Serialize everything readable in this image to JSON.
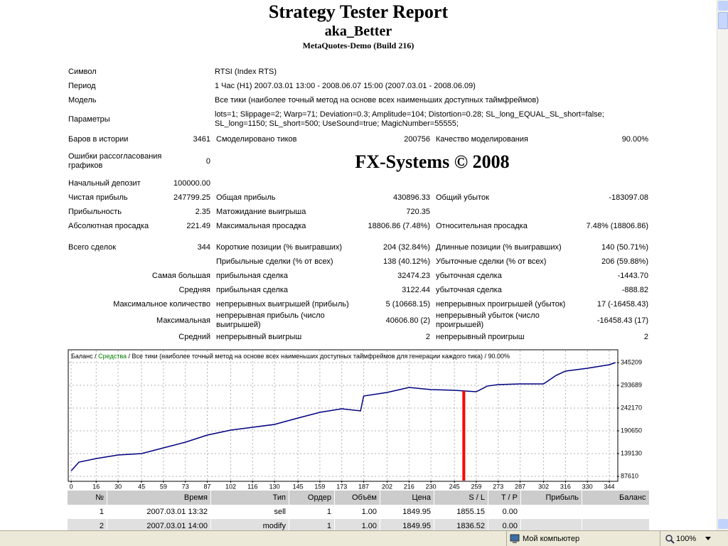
{
  "header": {
    "title": "Strategy Tester Report",
    "expert": "aka_Better",
    "server": "MetaQuotes-Demo (Build 216)"
  },
  "report": {
    "info": [
      [
        "Символ",
        "RTSI (Index RTS)"
      ],
      [
        "Период",
        "1 Час (H1) 2007.03.01 13:00 - 2008.06.07 15:00 (2007.03.01 - 2008.06.09)"
      ],
      [
        "Модель",
        "Все тики (наиболее точный метод на основе всех наименьших доступных таймфреймов)"
      ],
      [
        "Параметры",
        "lots=1; Slippage=2; Warp=71; Deviation=0.3; Amplitude=104; Distortion=0.28; SL_long_EQUAL_SL_short=false; SL_long=1150; SL_short=500; UseSound=true; MagicNumber=55555;"
      ]
    ],
    "watermark": "FX-Systems © 2008",
    "stats": [
      [
        "Баров в истории",
        "3461",
        "Смоделировано тиков",
        "200756",
        "Качество моделирования",
        "90.00%"
      ],
      [
        "Ошибки рассогласования графиков",
        "0"
      ],
      [
        "Начальный депозит",
        "100000.00"
      ],
      [
        "Чистая прибыль",
        "247799.25",
        "Общая прибыль",
        "430896.33",
        "Общий убыток",
        "-183097.08"
      ],
      [
        "Прибыльность",
        "2.35",
        "Матожидание выигрыша",
        "720.35"
      ],
      [
        "Абсолютная просадка",
        "221.49",
        "Максимальная просадка",
        "18806.86 (7.48%)",
        "Относительная просадка",
        "7.48% (18806.86)"
      ],
      [
        "Всего сделок",
        "344",
        "Короткие позиции (% выигравших)",
        "204 (32.84%)",
        "Длинные позиции (% выигравших)",
        "140 (50.71%)"
      ],
      [
        null,
        null,
        "Прибыльные сделки (% от всех)",
        "138 (40.12%)",
        "Убыточные сделки (% от всех)",
        "206 (59.88%)"
      ],
      [
        null,
        "Самая большая",
        "прибыльная сделка",
        "32474.23",
        "убыточная сделка",
        "-1443.70"
      ],
      [
        null,
        "Средняя",
        "прибыльная сделка",
        "3122.44",
        "убыточная сделка",
        "-888.82"
      ],
      [
        null,
        "Максимальное количество",
        "непрерывных выигрышей (прибыль)",
        "5 (10668.15)",
        "непрерывных проигрышей (убыток)",
        "17 (-16458.43)"
      ],
      [
        null,
        "Максимальная",
        "непрерывная прибыль (число выигрышей)",
        "40606.80 (2)",
        "непрерывный убыток (число проигрышей)",
        "-16458.43 (17)"
      ],
      [
        null,
        "Средний",
        "непрерывный выигрыш",
        "2",
        "непрерывный проигрыш",
        "2"
      ]
    ]
  },
  "chart_data": {
    "type": "line",
    "series": [
      {
        "name": "Баланс",
        "color": "#000080",
        "values": [
          100000,
          119800,
          127860,
          135900,
          139130,
          152000,
          164900,
          181000,
          192300,
          198700,
          205100,
          219600,
          232500,
          240600,
          235800,
          269500,
          277600,
          288800,
          284000,
          282400,
          279200,
          292000,
          295300,
          296900,
          296900,
          316200,
          325900,
          332300,
          340400,
          345209
        ]
      }
    ],
    "x": [
      0,
      5,
      16,
      30,
      45,
      59,
      73,
      87,
      102,
      116,
      130,
      145,
      159,
      173,
      185,
      187,
      202,
      216,
      230,
      245,
      259,
      266,
      273,
      287,
      302,
      310,
      316,
      330,
      344,
      348
    ],
    "separator": " / ",
    "equity_label": "Средства",
    "equity_color": "#008000",
    "caption": "Все тики (наиболее точный метод на основе всех наименьших доступных таймфреймов для генерации каждого тика)",
    "quality": "90.00%",
    "xlim": [
      -1.4,
      349
    ],
    "ylim": [
      77950,
      372580
    ],
    "xticks": [
      0,
      16,
      30,
      45,
      59,
      73,
      87,
      102,
      116,
      130,
      145,
      159,
      173,
      187,
      202,
      216,
      230,
      245,
      259,
      273,
      287,
      302,
      316,
      330,
      344
    ],
    "yticks": [
      87610,
      139130,
      190650,
      242170,
      293689,
      345209
    ],
    "grid": true,
    "marker_x": 251,
    "marker_color": "#ff0000"
  },
  "trades": {
    "columns": [
      "№",
      "Время",
      "Тип",
      "Ордер",
      "Объём",
      "Цена",
      "S / L",
      "T / P",
      "Прибыль",
      "Баланс"
    ],
    "rows": [
      [
        "1",
        "2007.03.01 13:32",
        "sell",
        "1",
        "1.00",
        "1849.95",
        "1855.15",
        "0.00",
        null,
        null
      ],
      [
        "2",
        "2007.03.01 14:00",
        "modify",
        "1",
        "1.00",
        "1849.95",
        "1836.52",
        "0.00",
        null,
        null
      ]
    ]
  },
  "status": {
    "zone": "Мой компьютер",
    "zoom": "100%"
  }
}
